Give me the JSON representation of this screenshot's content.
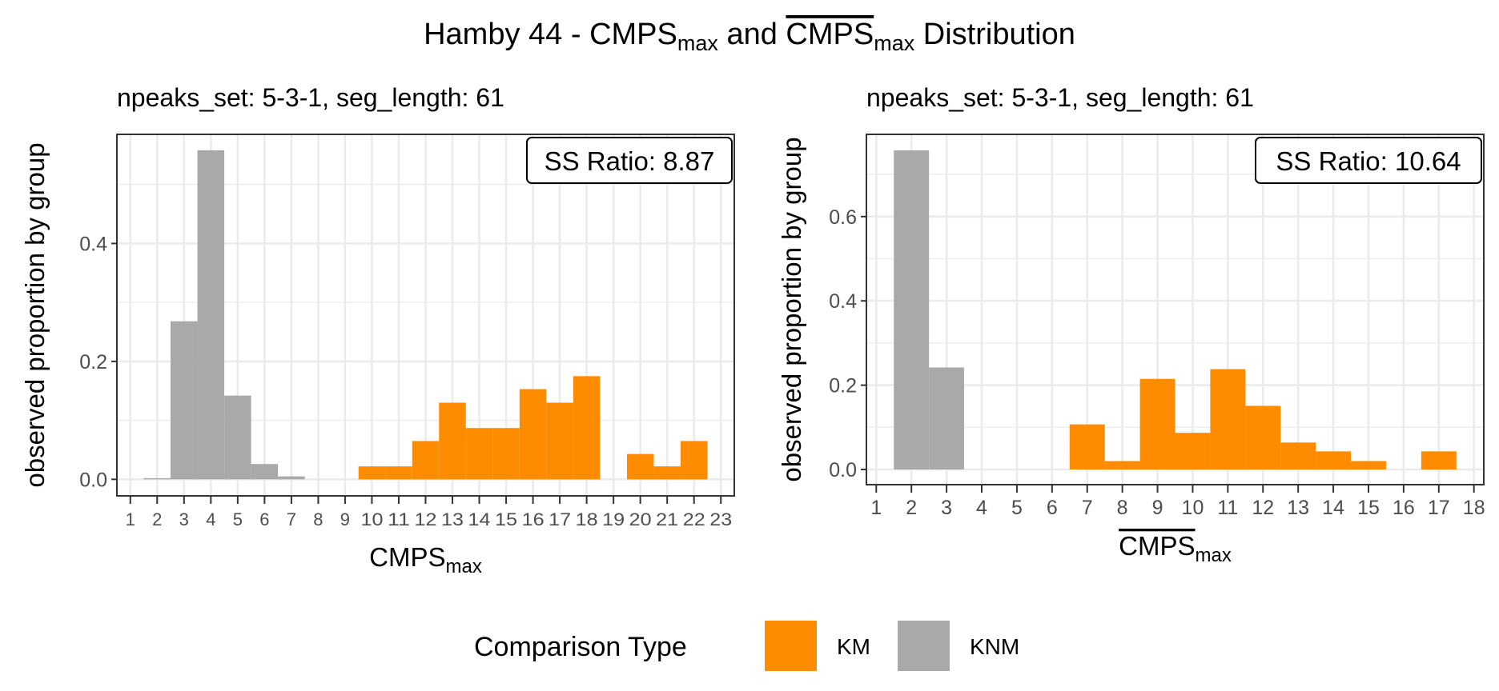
{
  "title": {
    "prefix": "Hamby 44 - ",
    "cmps": "CMPS",
    "sub": "max",
    "mid": " and ",
    "cmps2": "CMPS",
    "sub2": "max",
    "suffix": " Distribution"
  },
  "colors": {
    "KM": "#FF8C00",
    "KNM": "#A9A9A9",
    "grid": "#EBEBEB",
    "border": "#333333"
  },
  "legend": {
    "title": "Comparison Type",
    "position": "bottom",
    "entries": [
      {
        "label": "KM",
        "color": "#FF8C00"
      },
      {
        "label": "KNM",
        "color": "#A9A9A9"
      }
    ]
  },
  "chart_data": [
    {
      "type": "bar",
      "subtitle": "npeaks_set: 5-3-1, seg_length: 61",
      "annotation": "SS Ratio: 8.87",
      "xlabel": {
        "main": "CMPS",
        "sub": "max",
        "overline": false
      },
      "ylabel": "observed proportion by group",
      "xticks": [
        1,
        2,
        3,
        4,
        5,
        6,
        7,
        8,
        9,
        10,
        11,
        12,
        13,
        14,
        15,
        16,
        17,
        18,
        19,
        20,
        21,
        22,
        23
      ],
      "yticks": [
        0.0,
        0.2,
        0.4
      ],
      "ytick_labels": [
        "0.0",
        "0.2",
        "0.4"
      ],
      "xlim": [
        0.5,
        23.5
      ],
      "ylim": [
        -0.028,
        0.585
      ],
      "grid": true,
      "series": [
        {
          "name": "KNM",
          "x": [
            2,
            3,
            4,
            5,
            6,
            7
          ],
          "values": [
            0.002,
            0.268,
            0.558,
            0.142,
            0.026,
            0.005
          ]
        },
        {
          "name": "KM",
          "x": [
            10,
            11,
            12,
            13,
            14,
            15,
            16,
            17,
            18,
            20,
            21,
            22
          ],
          "values": [
            0.022,
            0.022,
            0.065,
            0.13,
            0.087,
            0.087,
            0.153,
            0.13,
            0.175,
            0.043,
            0.022,
            0.065
          ]
        }
      ]
    },
    {
      "type": "bar",
      "subtitle": "npeaks_set: 5-3-1, seg_length: 61",
      "annotation": "SS Ratio: 10.64",
      "xlabel": {
        "main": "CMPS",
        "sub": "max",
        "overline": true
      },
      "ylabel": "observed proportion by group",
      "xticks": [
        1,
        2,
        3,
        4,
        5,
        6,
        7,
        8,
        9,
        10,
        11,
        12,
        13,
        14,
        15,
        16,
        17,
        18
      ],
      "yticks": [
        0.0,
        0.2,
        0.4,
        0.6
      ],
      "ytick_labels": [
        "0.0",
        "0.2",
        "0.4",
        "0.6"
      ],
      "xlim": [
        0.72,
        18.28
      ],
      "ylim": [
        -0.036,
        0.795
      ],
      "grid": true,
      "series": [
        {
          "name": "KNM",
          "x": [
            2,
            3
          ],
          "values": [
            0.757,
            0.242
          ]
        },
        {
          "name": "KM",
          "x": [
            7,
            8,
            9,
            10,
            11,
            12,
            13,
            14,
            15,
            17
          ],
          "values": [
            0.107,
            0.02,
            0.215,
            0.087,
            0.238,
            0.151,
            0.064,
            0.043,
            0.02,
            0.043
          ]
        }
      ]
    }
  ]
}
